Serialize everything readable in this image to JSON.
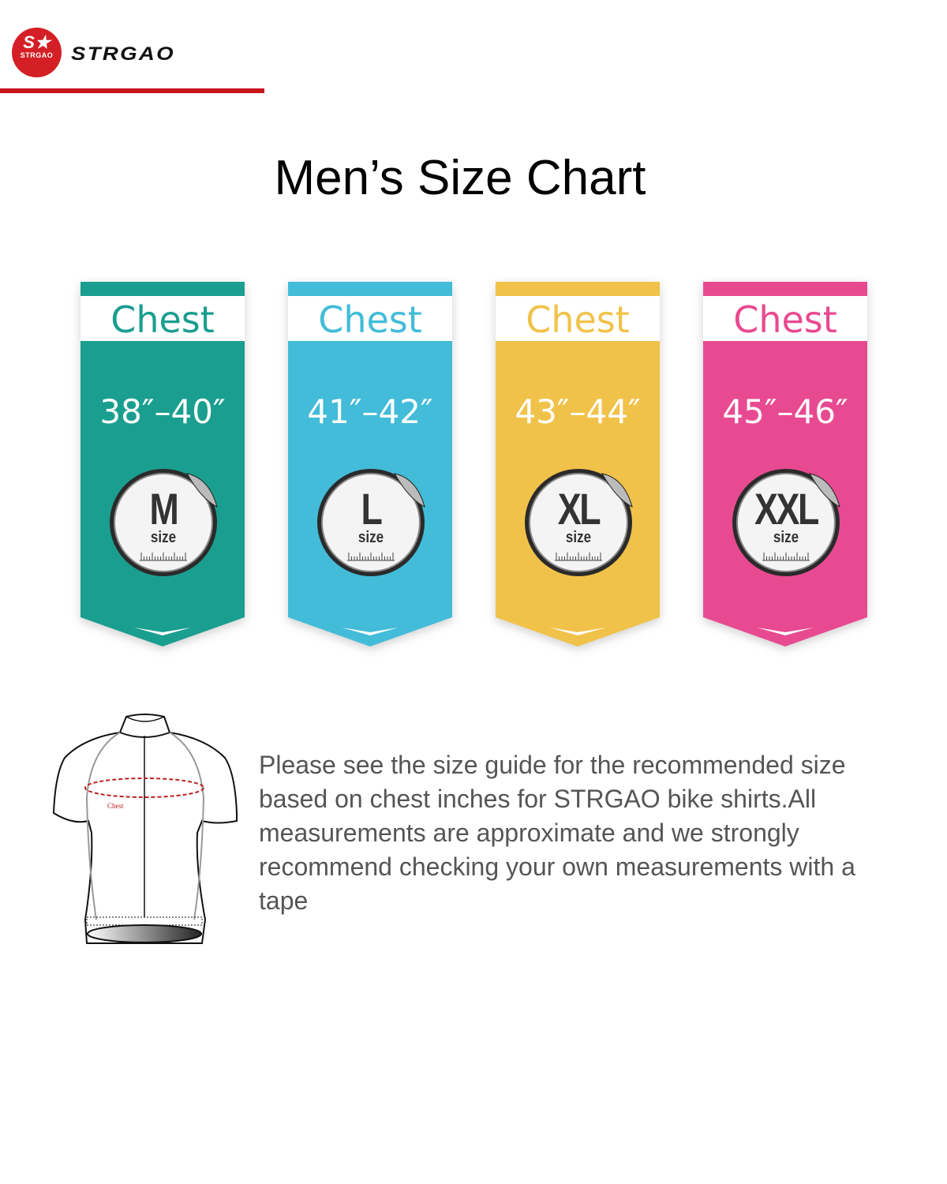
{
  "brand": {
    "name": "STRGAO",
    "logo_text": "STRGAO",
    "color": "#d41f26"
  },
  "title": "Men’s Size Chart",
  "sizes": [
    {
      "label": "Chest",
      "range": "38″–40″",
      "size": "M",
      "size_word": "size",
      "color": "#1a9e8f"
    },
    {
      "label": "Chest",
      "range": "41″–42″",
      "size": "L",
      "size_word": "size",
      "color": "#42bcd8"
    },
    {
      "label": "Chest",
      "range": "43″–44″",
      "size": "XL",
      "size_word": "size",
      "color": "#f1c24a"
    },
    {
      "label": "Chest",
      "range": "45″–46″",
      "size": "XXL",
      "size_word": "size",
      "color": "#e84a91"
    }
  ],
  "diagram": {
    "chest_label": "Chest"
  },
  "description": "Please see the size guide for the recommended size based on chest inches for STRGAO bike shirts.All measurements are approximate and we strongly recommend checking your own measurements with a tape"
}
